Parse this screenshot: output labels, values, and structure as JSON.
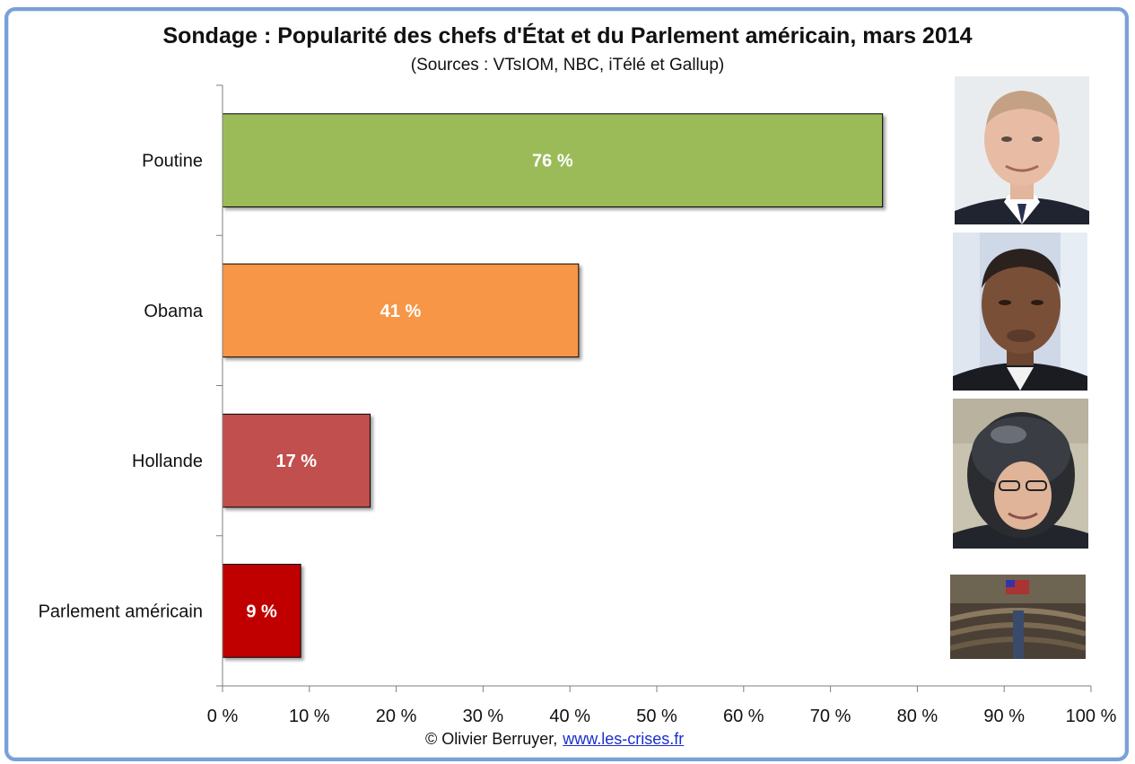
{
  "header": {
    "title": "Sondage : Popularité des chefs d'État et du Parlement américain, mars 2014",
    "subtitle": "(Sources : VTsIOM, NBC, iTélé et Gallup)"
  },
  "footer": {
    "author": "© Olivier Berruyer,",
    "link": "www.les-crises.fr"
  },
  "chart_data": {
    "type": "bar",
    "orientation": "horizontal",
    "title": "Sondage : Popularité des chefs d'État et du Parlement américain, mars 2014",
    "subtitle": "(Sources : VTsIOM, NBC, iTélé et Gallup)",
    "categories": [
      "Poutine",
      "Obama",
      "Hollande",
      "Parlement américain"
    ],
    "values": [
      76,
      41,
      17,
      9
    ],
    "data_labels": [
      "76 %",
      "41 %",
      "17 %",
      "9 %"
    ],
    "colors": [
      "#9bbb59",
      "#f79646",
      "#c0504d",
      "#c00000"
    ],
    "xlim": [
      0,
      100
    ],
    "xticks": [
      0,
      10,
      20,
      30,
      40,
      50,
      60,
      70,
      80,
      90,
      100
    ],
    "xtick_labels": [
      "0 %",
      "10 %",
      "20 %",
      "30 %",
      "40 %",
      "50 %",
      "60 %",
      "70 %",
      "80 %",
      "90 %",
      "100 %"
    ],
    "xlabel": "",
    "ylabel": "",
    "grid": false,
    "legend": false
  }
}
